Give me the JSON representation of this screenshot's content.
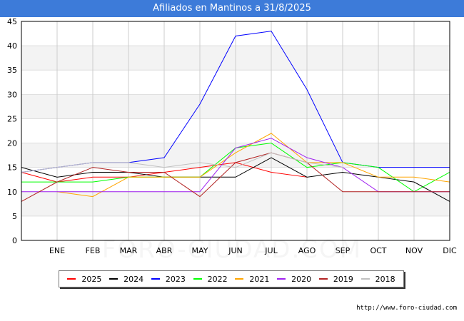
{
  "title": "Afiliados en Mantinos a 31/8/2025",
  "source": "http://www.foro-ciudad.com",
  "watermark": "FORO-CIUDAD.COM",
  "chart_data": {
    "type": "line",
    "categories": [
      "",
      "ENE",
      "FEB",
      "MAR",
      "ABR",
      "MAY",
      "JUN",
      "JUL",
      "AGO",
      "SEP",
      "OCT",
      "NOV",
      "DIC"
    ],
    "ylim": [
      0,
      45
    ],
    "yticks": [
      0,
      5,
      10,
      15,
      20,
      25,
      30,
      35,
      40,
      45
    ],
    "grid": true,
    "legend_position": "bottom",
    "series": [
      {
        "name": "2025",
        "color": "#ff0000",
        "values": [
          14,
          12,
          13,
          13,
          14,
          15,
          16,
          14,
          13,
          null,
          null,
          null,
          null
        ]
      },
      {
        "name": "2024",
        "color": "#000000",
        "values": [
          15,
          13,
          14,
          14,
          13,
          13,
          13,
          17,
          13,
          14,
          13,
          12,
          8
        ]
      },
      {
        "name": "2023",
        "color": "#0000ff",
        "values": [
          14,
          15,
          16,
          16,
          17,
          28,
          42,
          43,
          31,
          16,
          15,
          15,
          15
        ]
      },
      {
        "name": "2022",
        "color": "#00ff00",
        "values": [
          12,
          12,
          12,
          13,
          13,
          13,
          19,
          20,
          15,
          16,
          15,
          10,
          14
        ]
      },
      {
        "name": "2021",
        "color": "#ffa500",
        "values": [
          null,
          10,
          9,
          13,
          13,
          13,
          18,
          22,
          16,
          16,
          13,
          13,
          12
        ]
      },
      {
        "name": "2020",
        "color": "#a020f0",
        "values": [
          10,
          10,
          10,
          10,
          10,
          10,
          19,
          21,
          17,
          15,
          10,
          10,
          10
        ]
      },
      {
        "name": "2019",
        "color": "#b22222",
        "values": [
          8,
          12,
          15,
          14,
          14,
          9,
          16,
          18,
          16,
          10,
          10,
          10,
          10
        ]
      },
      {
        "name": "2018",
        "color": "#c0c0c0",
        "values": [
          14,
          15,
          16,
          16,
          15,
          16,
          15,
          18,
          16,
          15,
          null,
          null,
          null
        ]
      }
    ]
  }
}
